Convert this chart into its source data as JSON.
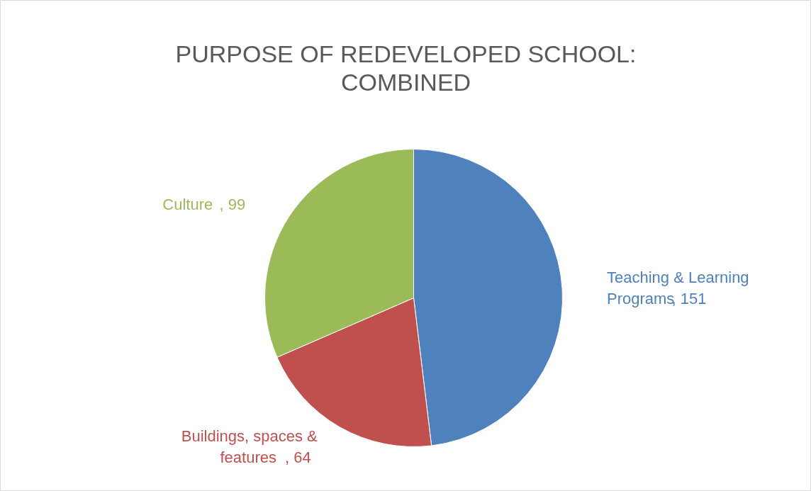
{
  "chart_data": {
    "type": "pie",
    "title": "PURPOSE OF REDEVELOPED SCHOOL: COMBINED",
    "categories": [
      "Teaching & Learning Programs",
      "Buildings, spaces & features",
      "Culture"
    ],
    "values": [
      151,
      64,
      99
    ],
    "colors": [
      "#4f81bd",
      "#c0504d",
      "#9bbb59"
    ],
    "value_labels": [
      ", 151",
      ", 64",
      ", 99"
    ]
  }
}
